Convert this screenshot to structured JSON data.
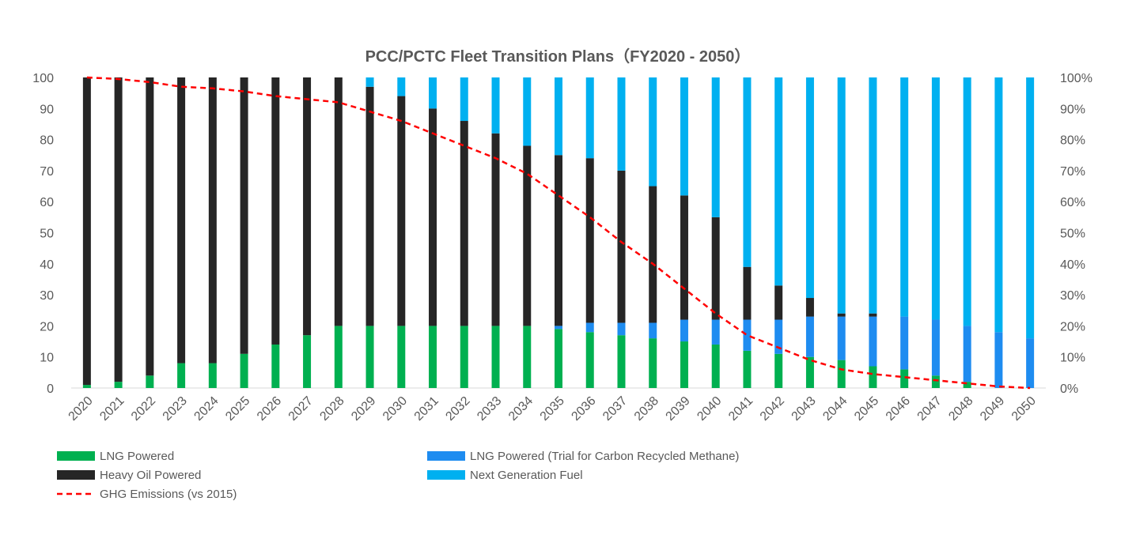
{
  "chart_data": {
    "type": "bar",
    "stacked": true,
    "title": "PCC/PCTC  Fleet Transition Plans（FY2020 - 2050）",
    "categories": [
      "2020",
      "2021",
      "2022",
      "2023",
      "2024",
      "2025",
      "2026",
      "2027",
      "2028",
      "2029",
      "2030",
      "2031",
      "2032",
      "2033",
      "2034",
      "2035",
      "2036",
      "2037",
      "2038",
      "2039",
      "2040",
      "2041",
      "2042",
      "2043",
      "2044",
      "2045",
      "2046",
      "2047",
      "2048",
      "2049",
      "2050"
    ],
    "ylim": [
      0,
      100
    ],
    "y_ticks": [
      "0",
      "10",
      "20",
      "30",
      "40",
      "50",
      "60",
      "70",
      "80",
      "90",
      "100"
    ],
    "y2lim": [
      0,
      100
    ],
    "y2_ticks": [
      "0%",
      "10%",
      "20%",
      "30%",
      "40%",
      "50%",
      "60%",
      "70%",
      "80%",
      "90%",
      "100%"
    ],
    "grid": false,
    "legend_position": "bottom",
    "series": [
      {
        "name": "LNG Powered",
        "color": "#00b050",
        "axis": "left",
        "values": [
          1,
          2,
          4,
          8,
          8,
          11,
          14,
          17,
          20,
          20,
          20,
          20,
          20,
          20,
          20,
          19,
          18,
          17,
          16,
          15,
          14,
          12,
          11,
          10,
          9,
          7,
          6,
          4,
          2,
          0,
          0
        ]
      },
      {
        "name": "Heavy Oil Powered",
        "color": "#262626",
        "axis": "left",
        "values": [
          99,
          98,
          96,
          92,
          92,
          89,
          86,
          83,
          80,
          77,
          74,
          70,
          66,
          62,
          58,
          55,
          53,
          49,
          44,
          40,
          33,
          17,
          11,
          6,
          1,
          1,
          0,
          0,
          0,
          0,
          0
        ]
      },
      {
        "name": "LNG Powered (Trial for Carbon Recycled Methane)",
        "color": "#1e8cf0",
        "axis": "left",
        "values": [
          0,
          0,
          0,
          0,
          0,
          0,
          0,
          0,
          0,
          0,
          0,
          0,
          0,
          0,
          0,
          1,
          3,
          4,
          5,
          7,
          8,
          10,
          11,
          13,
          14,
          16,
          17,
          18,
          18,
          18,
          16
        ]
      },
      {
        "name": "Next Generation Fuel",
        "color": "#00b0f0",
        "axis": "left",
        "values": [
          0,
          0,
          0,
          0,
          0,
          0,
          0,
          0,
          0,
          3,
          6,
          10,
          14,
          18,
          22,
          25,
          26,
          30,
          35,
          38,
          45,
          61,
          67,
          71,
          76,
          76,
          77,
          78,
          80,
          82,
          84
        ]
      },
      {
        "name": "GHG Emissions (vs 2015)",
        "type": "line",
        "style": "dashed",
        "color": "#ff0000",
        "axis": "right",
        "unit": "%",
        "values": [
          100,
          99.5,
          98.5,
          97,
          96.5,
          95.5,
          94,
          93,
          92,
          89,
          86,
          82,
          78,
          74,
          69,
          62,
          55,
          47,
          40,
          32,
          24,
          17,
          13,
          9,
          6,
          4.5,
          3.5,
          2.5,
          1.5,
          0.5,
          0
        ]
      }
    ]
  }
}
